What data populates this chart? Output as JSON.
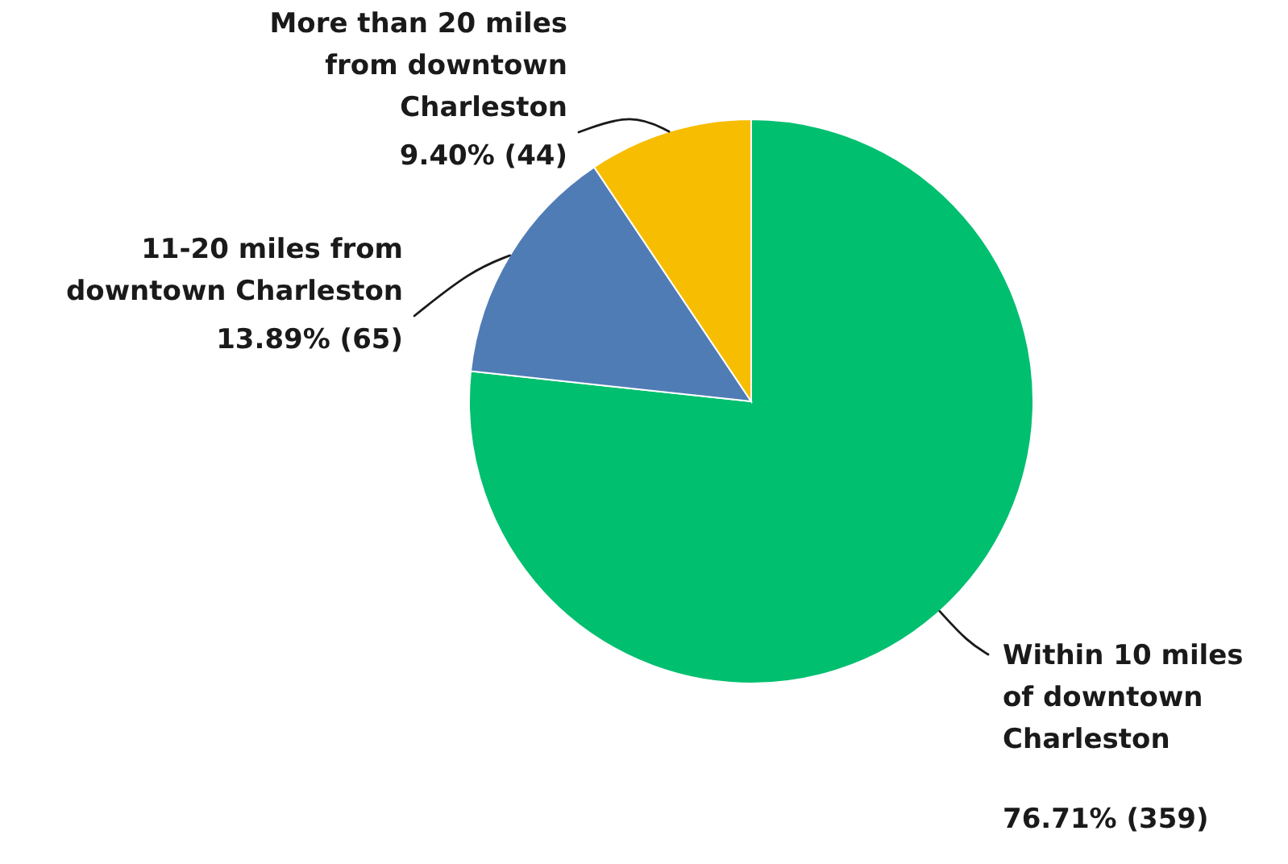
{
  "chart_data": {
    "type": "pie",
    "categories": [
      "Within 10 miles of downtown Charleston",
      "11-20 miles from downtown Charleston",
      "More than 20 miles from downtown Charleston"
    ],
    "values": [
      359,
      65,
      44
    ],
    "colors": [
      "#00bf6f",
      "#507cb6",
      "#f7bd00"
    ],
    "value_labels": [
      "76.71% (359)",
      "13.89% (65)",
      "9.40% (44)"
    ]
  }
}
